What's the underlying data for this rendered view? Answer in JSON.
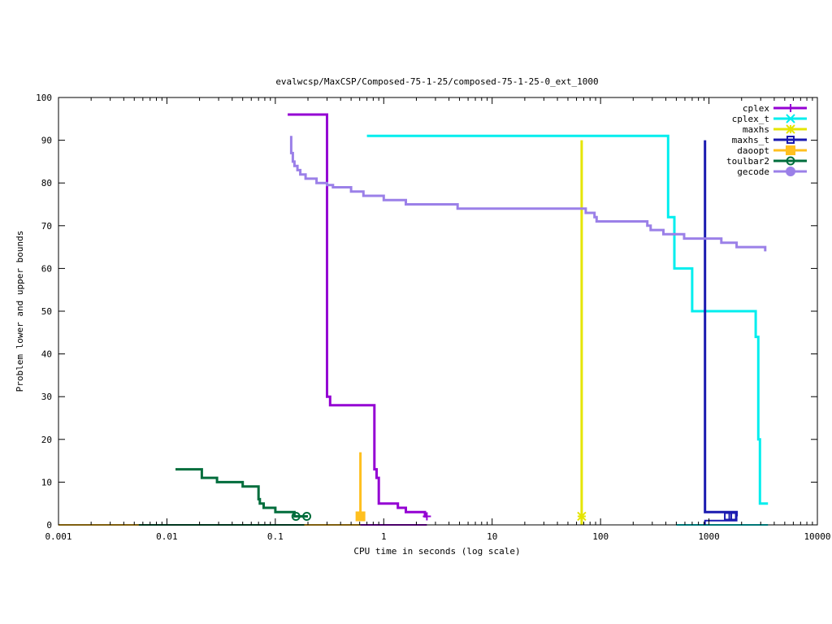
{
  "chart_data": {
    "type": "line",
    "title": "evalwcsp/MaxCSP/Composed-75-1-25/composed-75-1-25-0_ext_1000",
    "xlabel": "CPU time in seconds (log scale)",
    "ylabel": "Problem lower and upper bounds",
    "xscale": "log",
    "xlim": [
      0.001,
      10000
    ],
    "ylim": [
      0,
      100
    ],
    "xticks": [
      0.001,
      0.01,
      0.1,
      1,
      10,
      100,
      1000,
      10000
    ],
    "xtick_labels": [
      "0.001",
      "0.01",
      "0.1",
      "1",
      "10",
      "100",
      "1000",
      "10000"
    ],
    "yticks": [
      0,
      10,
      20,
      30,
      40,
      50,
      60,
      70,
      80,
      90,
      100
    ],
    "ytick_labels": [
      "0",
      "10",
      "20",
      "30",
      "40",
      "50",
      "60",
      "70",
      "80",
      "90",
      "100"
    ],
    "grid": false,
    "legend_position": "top-right",
    "series": [
      {
        "name": "cplex",
        "color": "#9400d3",
        "marker": "plus",
        "upper": [
          [
            0.13,
            96
          ],
          [
            0.3,
            96
          ],
          [
            0.3,
            30
          ],
          [
            0.32,
            30
          ],
          [
            0.32,
            28
          ],
          [
            0.82,
            28
          ],
          [
            0.82,
            13
          ],
          [
            0.86,
            13
          ],
          [
            0.86,
            11
          ],
          [
            0.9,
            11
          ],
          [
            0.9,
            5
          ],
          [
            1.35,
            5
          ],
          [
            1.35,
            4
          ],
          [
            1.6,
            4
          ],
          [
            1.6,
            3
          ],
          [
            2.4,
            3
          ],
          [
            2.4,
            2
          ],
          [
            2.5,
            2
          ]
        ],
        "lower": [
          [
            0.001,
            0
          ],
          [
            2.5,
            0
          ]
        ],
        "markers": [
          [
            2.5,
            2
          ]
        ]
      },
      {
        "name": "cplex_t",
        "color": "#00eeee",
        "marker": "cross",
        "upper": [
          [
            0.7,
            91
          ],
          [
            420,
            91
          ],
          [
            420,
            72
          ],
          [
            480,
            72
          ],
          [
            480,
            60
          ],
          [
            700,
            60
          ],
          [
            700,
            50
          ],
          [
            2700,
            50
          ],
          [
            2700,
            44
          ],
          [
            2850,
            44
          ],
          [
            2850,
            20
          ],
          [
            2950,
            20
          ],
          [
            2950,
            5
          ],
          [
            3500,
            5
          ]
        ],
        "lower": [
          [
            500,
            0
          ],
          [
            3500,
            0
          ]
        ],
        "markers": []
      },
      {
        "name": "maxhs",
        "color": "#e5e500",
        "marker": "asterisk",
        "upper": [
          [
            67,
            0
          ],
          [
            67,
            90
          ]
        ],
        "lower": [
          [
            67,
            0
          ]
        ],
        "markers": [
          [
            67,
            2
          ]
        ]
      },
      {
        "name": "maxhs_t",
        "color": "#1a1ab0",
        "marker": "square",
        "upper": [
          [
            920,
            90
          ],
          [
            920,
            3
          ],
          [
            1800,
            3
          ],
          [
            1800,
            2
          ]
        ],
        "lower": [
          [
            920,
            0
          ],
          [
            920,
            1
          ],
          [
            1800,
            1
          ],
          [
            1800,
            2
          ]
        ],
        "markers": [
          [
            1500,
            2
          ],
          [
            1650,
            2
          ]
        ]
      },
      {
        "name": "daoopt",
        "color": "#ffc020",
        "marker": "filled-square",
        "upper": [
          [
            0.61,
            17
          ],
          [
            0.61,
            2
          ]
        ],
        "lower": [
          [
            0.001,
            0
          ],
          [
            0.61,
            0
          ]
        ],
        "markers": [
          [
            0.61,
            2
          ]
        ]
      },
      {
        "name": "toulbar2",
        "color": "#006d3c",
        "marker": "circle",
        "upper": [
          [
            0.012,
            13
          ],
          [
            0.021,
            13
          ],
          [
            0.021,
            11
          ],
          [
            0.029,
            11
          ],
          [
            0.029,
            10
          ],
          [
            0.05,
            10
          ],
          [
            0.05,
            9
          ],
          [
            0.07,
            9
          ],
          [
            0.07,
            6
          ],
          [
            0.072,
            6
          ],
          [
            0.072,
            5
          ],
          [
            0.078,
            5
          ],
          [
            0.078,
            4
          ],
          [
            0.1,
            4
          ],
          [
            0.1,
            3
          ],
          [
            0.15,
            3
          ],
          [
            0.15,
            2
          ],
          [
            0.2,
            2
          ]
        ],
        "lower": [
          [
            0.0055,
            0
          ],
          [
            0.185,
            0
          ]
        ],
        "markers": [
          [
            0.155,
            2
          ],
          [
            0.195,
            2
          ]
        ]
      },
      {
        "name": "gecode",
        "color": "#9b80e8",
        "marker": "filled-circle",
        "upper": [
          [
            0.14,
            91
          ],
          [
            0.14,
            87
          ],
          [
            0.145,
            87
          ],
          [
            0.145,
            85
          ],
          [
            0.15,
            85
          ],
          [
            0.15,
            84
          ],
          [
            0.16,
            84
          ],
          [
            0.16,
            83
          ],
          [
            0.17,
            83
          ],
          [
            0.17,
            82
          ],
          [
            0.19,
            82
          ],
          [
            0.19,
            81
          ],
          [
            0.24,
            81
          ],
          [
            0.24,
            80
          ],
          [
            0.3,
            80
          ],
          [
            0.3,
            79.5
          ],
          [
            0.34,
            79.5
          ],
          [
            0.34,
            79
          ],
          [
            0.5,
            79
          ],
          [
            0.5,
            78
          ],
          [
            0.65,
            78
          ],
          [
            0.65,
            77
          ],
          [
            1.0,
            77
          ],
          [
            1.0,
            76
          ],
          [
            1.6,
            76
          ],
          [
            1.6,
            75
          ],
          [
            4.8,
            75
          ],
          [
            4.8,
            74
          ],
          [
            73,
            74
          ],
          [
            73,
            73
          ],
          [
            88,
            73
          ],
          [
            88,
            72
          ],
          [
            92,
            72
          ],
          [
            92,
            71
          ],
          [
            270,
            71
          ],
          [
            270,
            70
          ],
          [
            290,
            70
          ],
          [
            290,
            69
          ],
          [
            380,
            69
          ],
          [
            380,
            68
          ],
          [
            590,
            68
          ],
          [
            590,
            67
          ],
          [
            1300,
            67
          ],
          [
            1300,
            66
          ],
          [
            1800,
            66
          ],
          [
            1800,
            65
          ],
          [
            3300,
            65
          ],
          [
            3300,
            64
          ]
        ],
        "lower": [],
        "markers": []
      }
    ]
  }
}
